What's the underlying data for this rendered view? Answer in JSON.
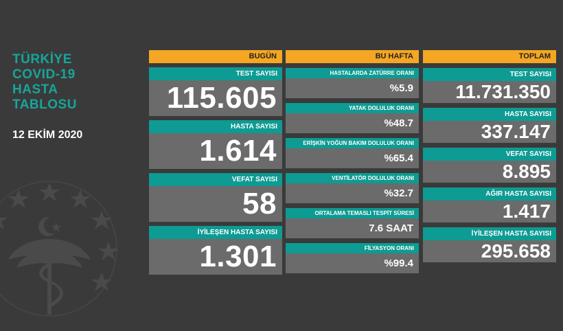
{
  "title": {
    "lines": [
      "TÜRKİYE",
      "COVID-19",
      "HASTA",
      "TABLOSU"
    ]
  },
  "date": "12 EKİM 2020",
  "colors": {
    "background": "#3a3a3a",
    "header": "#f5a623",
    "label": "#0e9b93",
    "value_box": "#6b6b6b",
    "title_text": "#17a59b"
  },
  "columns": [
    {
      "header": "BUGÜN",
      "items": [
        {
          "label": "TEST SAYISI",
          "value": "115.605"
        },
        {
          "label": "HASTA SAYISI",
          "value": "1.614"
        },
        {
          "label": "VEFAT SAYISI",
          "value": "58"
        },
        {
          "label": "İYİLEŞEN HASTA SAYISI",
          "value": "1.301"
        }
      ]
    },
    {
      "header": "BU HAFTA",
      "items": [
        {
          "label": "HASTALARDA ZATÜRRE ORANI",
          "value": "%5.9"
        },
        {
          "label": "YATAK DOLULUK ORANI",
          "value": "%48.7"
        },
        {
          "label": "ERİŞKİN YOĞUN BAKIM DOLULUK ORANI",
          "value": "%65.4"
        },
        {
          "label": "VENTİLATÖR DOLULUK ORANI",
          "value": "%32.7"
        },
        {
          "label": "ORTALAMA TEMASLI TESPİT SÜRESİ",
          "value": "7.6 SAAT"
        },
        {
          "label": "FİLYASYON ORANI",
          "value": "%99.4"
        }
      ]
    },
    {
      "header": "TOPLAM",
      "items": [
        {
          "label": "TEST SAYISI",
          "value": "11.731.350"
        },
        {
          "label": "HASTA SAYISI",
          "value": "337.147"
        },
        {
          "label": "VEFAT SAYISI",
          "value": "8.895"
        },
        {
          "label": "AĞIR HASTA SAYISI",
          "value": "1.417"
        },
        {
          "label": "İYİLEŞEN HASTA SAYISI",
          "value": "295.658"
        }
      ]
    }
  ]
}
